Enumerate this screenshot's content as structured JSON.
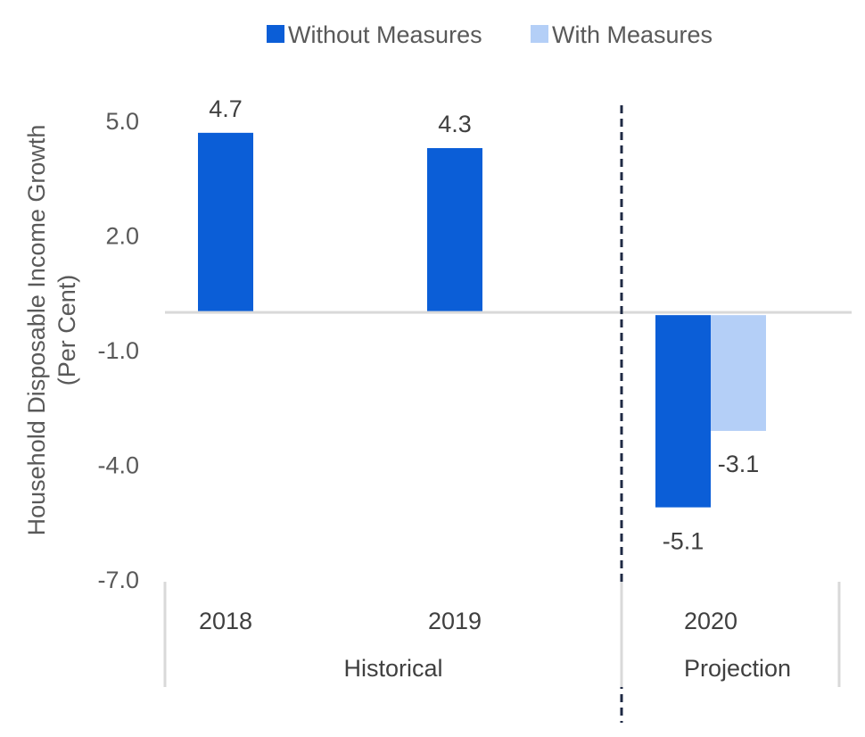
{
  "chart_data": {
    "type": "bar",
    "title": "",
    "ylabel_lines": [
      "Household Disposable Income Growth",
      "(Per Cent)"
    ],
    "categories": [
      "2018",
      "2019",
      "2020"
    ],
    "groups": [
      {
        "label": "Historical",
        "categories": [
          "2018",
          "2019"
        ]
      },
      {
        "label": "Projection",
        "categories": [
          "2020"
        ]
      }
    ],
    "series": [
      {
        "name": "Without Measures",
        "color": "#0b5ed7",
        "values": [
          4.7,
          4.3,
          -5.1
        ],
        "labels": [
          "4.7",
          "4.3",
          "-5.1"
        ]
      },
      {
        "name": "With Measures",
        "color": "#b4cff7",
        "values": [
          null,
          null,
          -3.1
        ],
        "labels": [
          "",
          "",
          "-3.1"
        ]
      }
    ],
    "yticks": [
      5.0,
      2.0,
      -1.0,
      -4.0,
      -7.0
    ],
    "ytick_labels": [
      "5.0",
      "2.0",
      "-1.0",
      "-4.0",
      "-7.0"
    ],
    "ylim": [
      -7.0,
      5.0
    ],
    "legend_position": "top",
    "grid": false,
    "divider_between": [
      "2019",
      "2020"
    ]
  }
}
